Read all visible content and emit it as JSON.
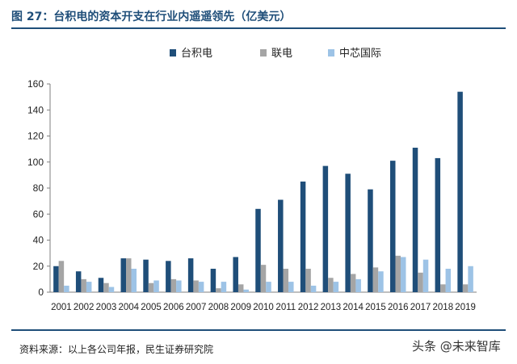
{
  "title": "图 27：台积电的资本开支在行业内遥遥领先（亿美元）",
  "source": "资料来源：以上各公司年报，民生证券研究院",
  "watermark": "头条 @未来智库",
  "colors": {
    "tsmc": "#1f4e79",
    "umc": "#a5a5a5",
    "smic": "#9dc3e6",
    "accent": "#1f4e79"
  },
  "chart_data": {
    "type": "bar",
    "categories": [
      "2001",
      "2002",
      "2003",
      "2004",
      "2005",
      "2006",
      "2007",
      "2008",
      "2009",
      "2010",
      "2011",
      "2012",
      "2013",
      "2014",
      "2015",
      "2016",
      "2017",
      "2018",
      "2019"
    ],
    "series": [
      {
        "name": "台积电",
        "color": "#1f4e79",
        "values": [
          20,
          16,
          11,
          26,
          25,
          24,
          26,
          18,
          27,
          64,
          71,
          85,
          97,
          91,
          79,
          101,
          111,
          103,
          154
        ]
      },
      {
        "name": "联电",
        "color": "#a5a5a5",
        "values": [
          24,
          10,
          7,
          26,
          7,
          10,
          9,
          3,
          6,
          21,
          18,
          18,
          11,
          14,
          19,
          28,
          15,
          6,
          6
        ]
      },
      {
        "name": "中芯国际",
        "color": "#9dc3e6",
        "values": [
          5,
          8,
          4,
          18,
          9,
          9,
          8,
          8,
          2,
          8,
          8,
          5,
          8,
          10,
          16,
          27,
          25,
          18,
          20
        ]
      }
    ],
    "ylim": [
      0,
      160
    ],
    "yticks": [
      0,
      20,
      40,
      60,
      80,
      100,
      120,
      140,
      160
    ],
    "legend_position": "top-center",
    "grid": false
  }
}
